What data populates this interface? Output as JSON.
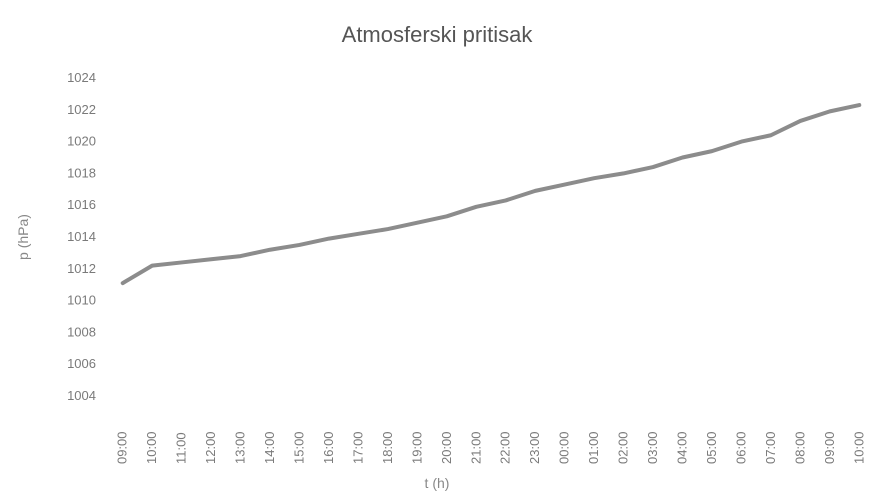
{
  "chart_data": {
    "type": "line",
    "title": "Atmosferski pritisak",
    "x_label": "t (h)",
    "y_label": "p (hPa)",
    "categories": [
      "09:00",
      "10:00",
      "11:00",
      "12:00",
      "13:00",
      "14:00",
      "15:00",
      "16:00",
      "17:00",
      "18:00",
      "19:00",
      "20:00",
      "21:00",
      "22:00",
      "23:00",
      "00:00",
      "01:00",
      "02:00",
      "03:00",
      "04:00",
      "05:00",
      "06:00",
      "07:00",
      "08:00",
      "09:00",
      "10:00"
    ],
    "series": [
      {
        "name": "p",
        "color": "#8c8c8c",
        "values": [
          1011.1,
          1012.2,
          1012.4,
          1012.6,
          1012.8,
          1013.2,
          1013.5,
          1013.9,
          1014.2,
          1014.5,
          1014.9,
          1015.3,
          1015.9,
          1016.3,
          1016.9,
          1017.3,
          1017.7,
          1018.0,
          1018.4,
          1019.0,
          1019.4,
          1020.0,
          1020.4,
          1021.3,
          1021.9,
          1022.3
        ]
      }
    ],
    "ylim": [
      1004,
      1024
    ],
    "yticks": [
      1004,
      1006,
      1008,
      1010,
      1012,
      1014,
      1016,
      1018,
      1020,
      1022,
      1024
    ],
    "grid": false
  }
}
